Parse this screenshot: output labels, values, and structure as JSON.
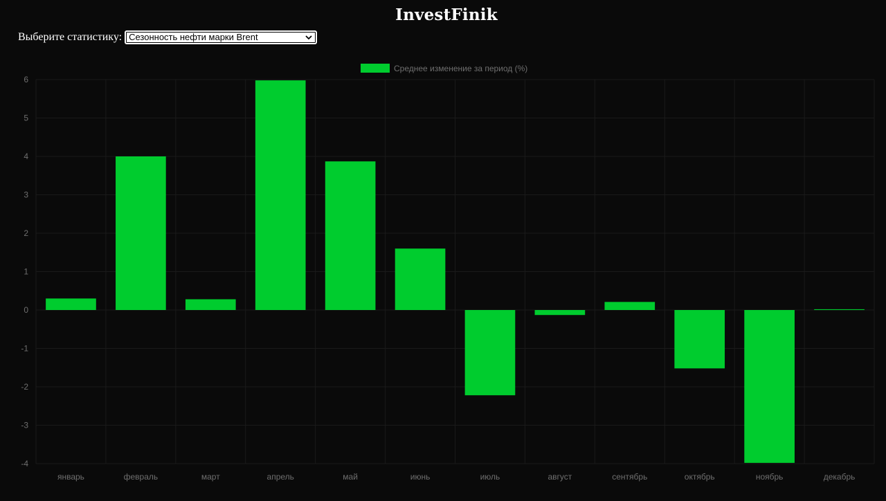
{
  "header": {
    "title": "InvestFinik"
  },
  "selector": {
    "label": "Выберите статистику:",
    "selected": "Сезонность нефти марки Brent"
  },
  "chart_data": {
    "type": "bar",
    "categories": [
      "январь",
      "февраль",
      "март",
      "апрель",
      "май",
      "июнь",
      "июль",
      "август",
      "сентябрь",
      "октябрь",
      "ноябрь",
      "декабрь"
    ],
    "series": [
      {
        "name": "Среднее изменение за период (%)",
        "values": [
          0.3,
          4.0,
          0.28,
          5.98,
          3.87,
          1.6,
          -2.22,
          -0.13,
          0.21,
          -1.52,
          -3.98,
          0.02
        ]
      }
    ],
    "yticks": [
      6,
      5,
      4,
      3,
      2,
      1,
      0,
      -1,
      -2,
      -3,
      -4
    ],
    "ylim": [
      -4,
      6
    ],
    "title": "",
    "xlabel": "",
    "ylabel": "",
    "legend_position": "top-center",
    "grid": true,
    "colors": {
      "bar": "#00cc2e",
      "grid": "#1a1a1a",
      "tick_text": "#6f6f6f",
      "background": "#0a0a0a"
    }
  }
}
